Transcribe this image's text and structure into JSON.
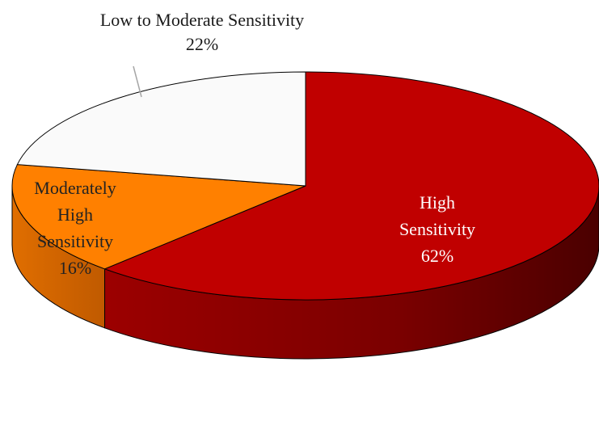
{
  "chart_data": {
    "type": "pie",
    "style": "3d",
    "title": "",
    "slices": [
      {
        "label_lines": [
          "High",
          "Sensitivity"
        ],
        "percent_text": "62%",
        "value": 62,
        "color": "#c00000",
        "side_color": "#7a0000",
        "label_color": "#ffffff"
      },
      {
        "label_lines": [
          "Moderately",
          "High",
          "Sensitivity"
        ],
        "percent_text": "16%",
        "value": 16,
        "color": "#ff8000",
        "side_color": "#c85f00",
        "label_color": "#222222"
      },
      {
        "label_lines": [
          "Low to Moderate Sensitivity"
        ],
        "percent_text": "22%",
        "value": 22,
        "color": "#fafafa",
        "side_color": "#d9d9d9",
        "label_color": "#222222"
      }
    ]
  }
}
